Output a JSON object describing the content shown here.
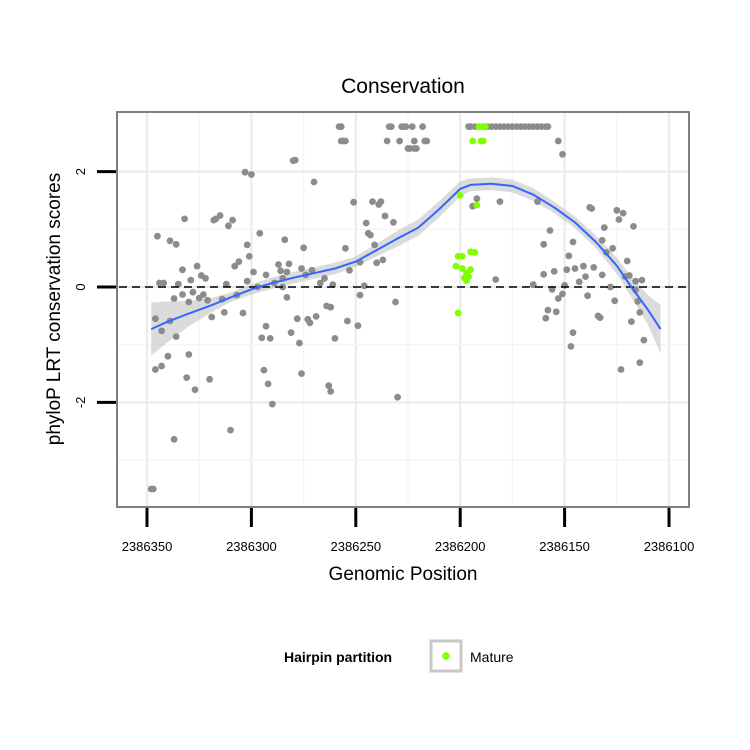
{
  "chart_data": {
    "type": "scatter",
    "title": "Conservation",
    "xlabel": "Genomic Position",
    "ylabel": "phyloP LRT conservation scores",
    "xlim": [
      2386100,
      2386350
    ],
    "x_reversed": true,
    "ylim": [
      -3.8,
      3.1
    ],
    "x_ticks": [
      2386350,
      2386300,
      2386250,
      2386200,
      2386150,
      2386100
    ],
    "x_tick_labels": [
      "2386350",
      "2386300",
      "2386250",
      "2386200",
      "2386150",
      "2386100"
    ],
    "y_ticks": [
      -2,
      0,
      2
    ],
    "y_tick_labels": [
      "-2",
      "0",
      "2"
    ],
    "hline": 0,
    "grid": true,
    "legend": {
      "title": "Hairpin partition",
      "position": "bottom",
      "entries": [
        {
          "label": "Mature",
          "color": "#7FFF00"
        }
      ]
    },
    "colors": {
      "other": "#8C8C8C",
      "mature": "#7FFF00",
      "smooth": "#3366FF",
      "ribbon": "#BEBEBE"
    },
    "series": [
      {
        "group": "other",
        "points": [
          [
            2386348,
            -3.5
          ],
          [
            2386347,
            -3.5
          ],
          [
            2386346,
            -1.43
          ],
          [
            2386346,
            -0.55
          ],
          [
            2386345,
            0.88
          ],
          [
            2386344,
            0.07
          ],
          [
            2386343,
            -1.37
          ],
          [
            2386343,
            -0.76
          ],
          [
            2386342,
            0.07
          ],
          [
            2386340,
            -1.2
          ],
          [
            2386339,
            -0.59
          ],
          [
            2386339,
            0.8
          ],
          [
            2386337,
            -2.64
          ],
          [
            2386337,
            -0.2
          ],
          [
            2386336,
            -0.86
          ],
          [
            2386336,
            0.74
          ],
          [
            2386335,
            0.05
          ],
          [
            2386333,
            -0.13
          ],
          [
            2386333,
            0.3
          ],
          [
            2386332,
            1.18
          ],
          [
            2386331,
            -1.57
          ],
          [
            2386330,
            -1.17
          ],
          [
            2386330,
            -0.26
          ],
          [
            2386329,
            0.12
          ],
          [
            2386328,
            -0.09
          ],
          [
            2386327,
            -1.78
          ],
          [
            2386326,
            0.36
          ],
          [
            2386325,
            -0.19
          ],
          [
            2386324,
            0.2
          ],
          [
            2386323,
            -0.13
          ],
          [
            2386322,
            0.15
          ],
          [
            2386321,
            -0.23
          ],
          [
            2386320,
            -1.6
          ],
          [
            2386319,
            -0.52
          ],
          [
            2386318,
            1.16
          ],
          [
            2386317,
            1.18
          ],
          [
            2386315,
            1.24
          ],
          [
            2386314,
            -0.21
          ],
          [
            2386313,
            -0.44
          ],
          [
            2386312,
            0.05
          ],
          [
            2386311,
            1.06
          ],
          [
            2386310,
            -2.48
          ],
          [
            2386309,
            1.16
          ],
          [
            2386308,
            0.36
          ],
          [
            2386307,
            -0.14
          ],
          [
            2386306,
            0.44
          ],
          [
            2386304,
            -0.45
          ],
          [
            2386303,
            1.99
          ],
          [
            2386302,
            0.1
          ],
          [
            2386302,
            0.73
          ],
          [
            2386301,
            0.53
          ],
          [
            2386300,
            1.95
          ],
          [
            2386299,
            0.26
          ],
          [
            2386297,
            0.0
          ],
          [
            2386296,
            0.93
          ],
          [
            2386295,
            -0.88
          ],
          [
            2386294,
            -1.44
          ],
          [
            2386293,
            -0.68
          ],
          [
            2386293,
            0.21
          ],
          [
            2386292,
            -1.68
          ],
          [
            2386291,
            -0.89
          ],
          [
            2386290,
            -2.03
          ],
          [
            2386289,
            0.07
          ],
          [
            2386287,
            0.39
          ],
          [
            2386286,
            0.28
          ],
          [
            2386285,
            0.0
          ],
          [
            2386285,
            0.15
          ],
          [
            2386284,
            0.82
          ],
          [
            2386283,
            0.26
          ],
          [
            2386283,
            -0.18
          ],
          [
            2386282,
            0.4
          ],
          [
            2386281,
            -0.79
          ],
          [
            2386280,
            2.19
          ],
          [
            2386279,
            2.2
          ],
          [
            2386278,
            -0.55
          ],
          [
            2386277,
            -0.97
          ],
          [
            2386276,
            0.32
          ],
          [
            2386276,
            -1.5
          ],
          [
            2386275,
            0.68
          ],
          [
            2386274,
            0.21
          ],
          [
            2386273,
            -0.56
          ],
          [
            2386272,
            -0.62
          ],
          [
            2386271,
            0.29
          ],
          [
            2386270,
            1.82
          ],
          [
            2386269,
            -0.51
          ],
          [
            2386267,
            0.07
          ],
          [
            2386265,
            0.15
          ],
          [
            2386264,
            -0.33
          ],
          [
            2386263,
            -1.71
          ],
          [
            2386262,
            -0.35
          ],
          [
            2386262,
            -1.81
          ],
          [
            2386261,
            0.04
          ],
          [
            2386260,
            -0.89
          ],
          [
            2386258,
            2.78
          ],
          [
            2386257,
            2.53
          ],
          [
            2386257,
            2.78
          ],
          [
            2386256,
            2.53
          ],
          [
            2386255,
            0.67
          ],
          [
            2386255,
            2.53
          ],
          [
            2386254,
            -0.59
          ],
          [
            2386253,
            0.29
          ],
          [
            2386251,
            1.47
          ],
          [
            2386249,
            -0.67
          ],
          [
            2386248,
            0.43
          ],
          [
            2386248,
            -0.14
          ],
          [
            2386246,
            0.02
          ],
          [
            2386245,
            1.11
          ],
          [
            2386244,
            0.93
          ],
          [
            2386243,
            0.9
          ],
          [
            2386242,
            1.48
          ],
          [
            2386241,
            0.73
          ],
          [
            2386240,
            0.42
          ],
          [
            2386239,
            1.43
          ],
          [
            2386238,
            1.48
          ],
          [
            2386237,
            0.47
          ],
          [
            2386236,
            1.23
          ],
          [
            2386235,
            2.53
          ],
          [
            2386234,
            2.78
          ],
          [
            2386233,
            2.78
          ],
          [
            2386232,
            1.12
          ],
          [
            2386231,
            -0.26
          ],
          [
            2386230,
            -1.91
          ],
          [
            2386229,
            2.53
          ],
          [
            2386228,
            2.78
          ],
          [
            2386227,
            2.78
          ],
          [
            2386226,
            2.78
          ],
          [
            2386225,
            2.4
          ],
          [
            2386224,
            2.4
          ],
          [
            2386223,
            2.78
          ],
          [
            2386222,
            2.53
          ],
          [
            2386222,
            2.4
          ],
          [
            2386221,
            2.4
          ],
          [
            2386218,
            2.78
          ],
          [
            2386217,
            2.53
          ],
          [
            2386216,
            2.53
          ],
          [
            2386196,
            2.78
          ],
          [
            2386195,
            2.78
          ],
          [
            2386193,
            2.78
          ],
          [
            2386191,
            2.78
          ],
          [
            2386189,
            2.78
          ],
          [
            2386187,
            2.78
          ],
          [
            2386185,
            2.78
          ],
          [
            2386183,
            2.78
          ],
          [
            2386181,
            2.78
          ],
          [
            2386179,
            2.78
          ],
          [
            2386177,
            2.78
          ],
          [
            2386175,
            2.78
          ],
          [
            2386173,
            2.78
          ],
          [
            2386171,
            2.78
          ],
          [
            2386169,
            2.78
          ],
          [
            2386167,
            2.78
          ],
          [
            2386165,
            2.78
          ],
          [
            2386163,
            2.78
          ],
          [
            2386161,
            2.78
          ],
          [
            2386159,
            2.78
          ],
          [
            2386158,
            2.78
          ],
          [
            2386194,
            1.4
          ],
          [
            2386192,
            1.53
          ],
          [
            2386183,
            0.13
          ],
          [
            2386181,
            1.48
          ],
          [
            2386165,
            0.04
          ],
          [
            2386163,
            1.48
          ],
          [
            2386160,
            0.74
          ],
          [
            2386160,
            0.22
          ],
          [
            2386159,
            -0.54
          ],
          [
            2386158,
            -0.4
          ],
          [
            2386157,
            0.98
          ],
          [
            2386156,
            -0.04
          ],
          [
            2386155,
            0.27
          ],
          [
            2386154,
            -0.43
          ],
          [
            2386153,
            -0.2
          ],
          [
            2386153,
            2.53
          ],
          [
            2386151,
            2.3
          ],
          [
            2386151,
            -0.12
          ],
          [
            2386150,
            0.03
          ],
          [
            2386149,
            0.3
          ],
          [
            2386148,
            0.54
          ],
          [
            2386147,
            -1.03
          ],
          [
            2386146,
            -0.79
          ],
          [
            2386146,
            0.78
          ],
          [
            2386145,
            0.32
          ],
          [
            2386143,
            0.09
          ],
          [
            2386141,
            0.36
          ],
          [
            2386140,
            0.18
          ],
          [
            2386139,
            -0.15
          ],
          [
            2386138,
            1.38
          ],
          [
            2386137,
            1.36
          ],
          [
            2386136,
            0.34
          ],
          [
            2386134,
            -0.5
          ],
          [
            2386133,
            -0.53
          ],
          [
            2386132,
            0.21
          ],
          [
            2386132,
            0.81
          ],
          [
            2386131,
            1.03
          ],
          [
            2386130,
            0.6
          ],
          [
            2386128,
            0.0
          ],
          [
            2386127,
            0.67
          ],
          [
            2386126,
            -0.24
          ],
          [
            2386125,
            1.33
          ],
          [
            2386124,
            1.17
          ],
          [
            2386123,
            -1.43
          ],
          [
            2386122,
            1.28
          ],
          [
            2386121,
            0.18
          ],
          [
            2386120,
            0.45
          ],
          [
            2386119,
            0.2
          ],
          [
            2386118,
            -0.6
          ],
          [
            2386117,
            1.05
          ],
          [
            2386116,
            0.1
          ],
          [
            2386115,
            -0.25
          ],
          [
            2386114,
            -0.44
          ],
          [
            2386114,
            -1.31
          ],
          [
            2386113,
            0.12
          ],
          [
            2386112,
            -0.92
          ],
          [
            2386116,
            -0.05
          ]
        ]
      },
      {
        "group": "mature",
        "points": [
          [
            2386202,
            0.36
          ],
          [
            2386201,
            -0.45
          ],
          [
            2386201,
            0.53
          ],
          [
            2386200,
            1.59
          ],
          [
            2386199,
            0.53
          ],
          [
            2386199,
            0.32
          ],
          [
            2386198,
            0.16
          ],
          [
            2386197,
            0.11
          ],
          [
            2386197,
            0.24
          ],
          [
            2386196,
            0.18
          ],
          [
            2386195,
            0.3
          ],
          [
            2386195,
            0.61
          ],
          [
            2386194,
            2.53
          ],
          [
            2386193,
            0.6
          ],
          [
            2386192,
            1.42
          ],
          [
            2386191,
            2.78
          ],
          [
            2386190,
            2.53
          ],
          [
            2386189,
            2.78
          ],
          [
            2386189,
            2.53
          ],
          [
            2386188,
            2.78
          ]
        ]
      }
    ],
    "smooth": [
      [
        2386348,
        -0.73
      ],
      [
        2386340,
        -0.6
      ],
      [
        2386330,
        -0.46
      ],
      [
        2386320,
        -0.33
      ],
      [
        2386310,
        -0.18
      ],
      [
        2386300,
        -0.04
      ],
      [
        2386290,
        0.07
      ],
      [
        2386280,
        0.16
      ],
      [
        2386270,
        0.24
      ],
      [
        2386260,
        0.32
      ],
      [
        2386250,
        0.44
      ],
      [
        2386240,
        0.64
      ],
      [
        2386230,
        0.84
      ],
      [
        2386220,
        1.03
      ],
      [
        2386210,
        1.35
      ],
      [
        2386200,
        1.7
      ],
      [
        2386195,
        1.77
      ],
      [
        2386185,
        1.79
      ],
      [
        2386175,
        1.75
      ],
      [
        2386165,
        1.6
      ],
      [
        2386155,
        1.38
      ],
      [
        2386145,
        1.12
      ],
      [
        2386135,
        0.78
      ],
      [
        2386125,
        0.37
      ],
      [
        2386118,
        0.0
      ],
      [
        2386110,
        -0.4
      ],
      [
        2386104,
        -0.73
      ]
    ],
    "ribbon_halfwidth": [
      0.46,
      0.35,
      0.22,
      0.13,
      0.08,
      0.09,
      0.1,
      0.1,
      0.1,
      0.1,
      0.09,
      0.11,
      0.14,
      0.14,
      0.14,
      0.13,
      0.11,
      0.11,
      0.11,
      0.11,
      0.1,
      0.1,
      0.11,
      0.14,
      0.18,
      0.26,
      0.42
    ]
  }
}
